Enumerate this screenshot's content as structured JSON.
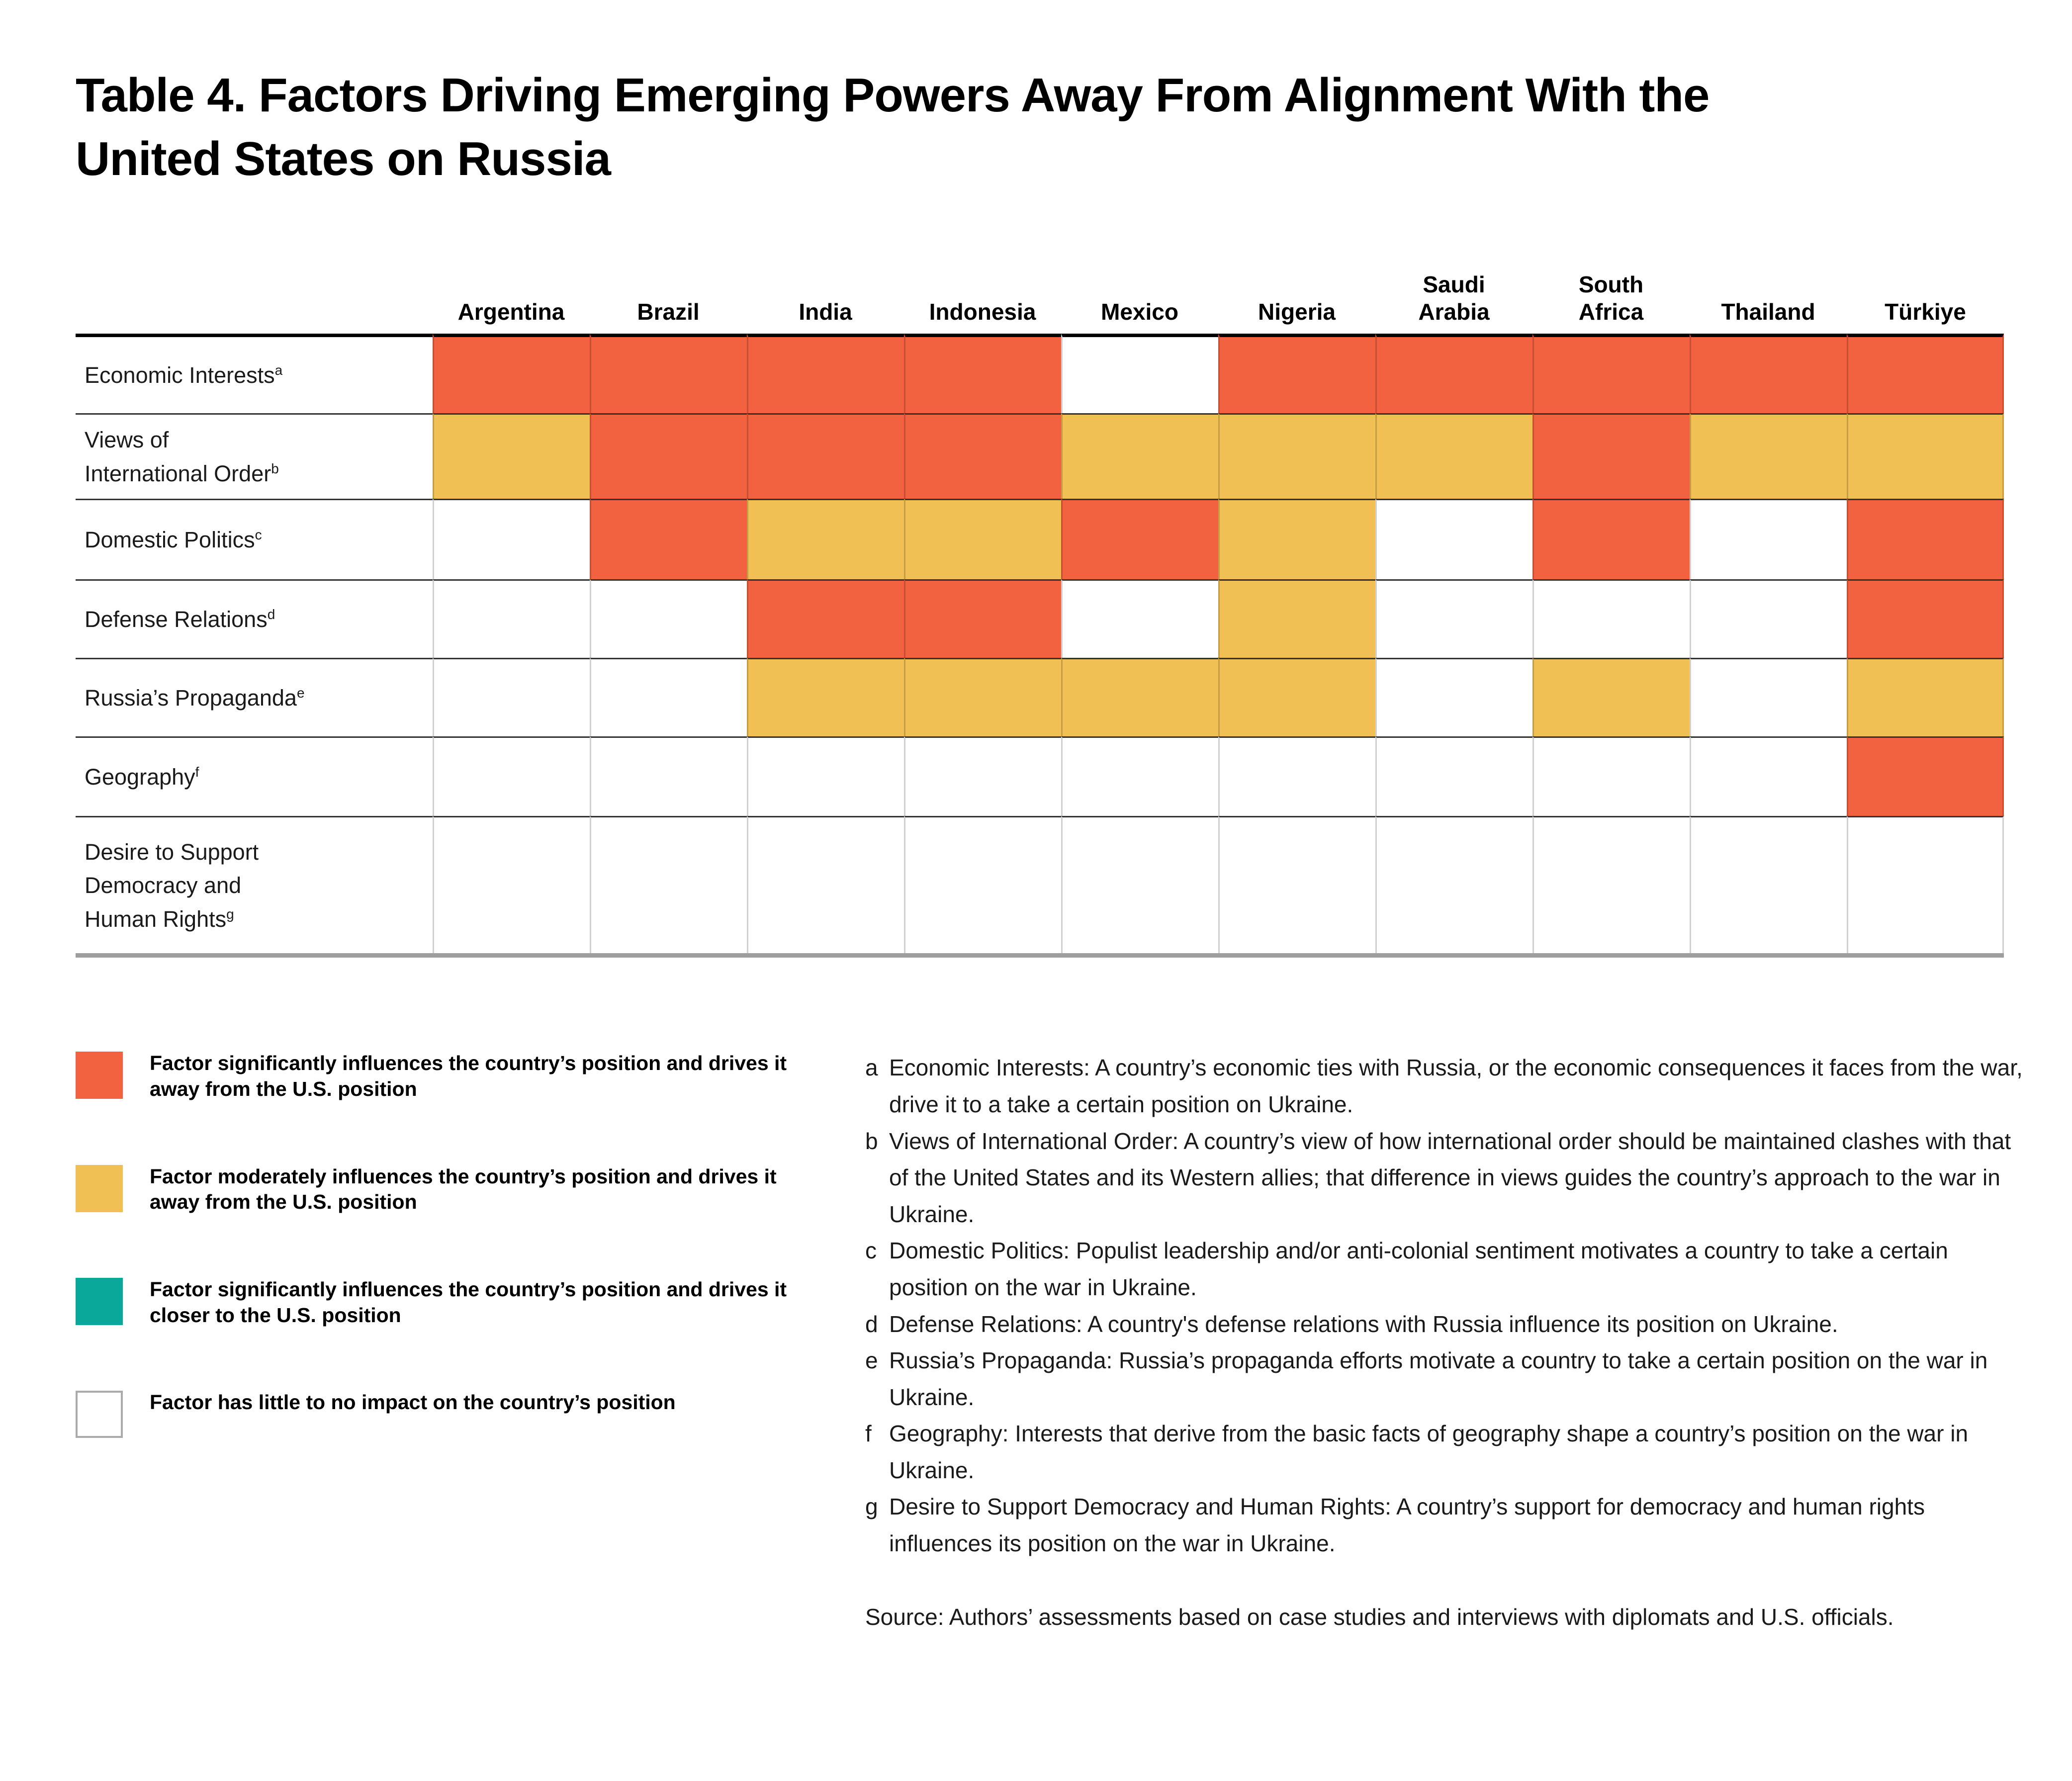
{
  "title": {
    "line1": "Table 4. Factors Driving Emerging Powers Away From Alignment With the",
    "line2": "United States on Russia"
  },
  "colors": {
    "significant": "#F26140",
    "moderate": "#F0C055",
    "closer": "#0AA79B",
    "none": "#FFFFFF",
    "header_rule": "#000000",
    "row_rule": "#333333",
    "bottom_rule": "#9E9E9E"
  },
  "chart_data": {
    "type": "heatmap",
    "title": "Table 4. Factors Driving Emerging Powers Away From Alignment With the United States on Russia",
    "value_scale": {
      "significant": "Factor significantly influences the country’s position and drives it away from the U.S. position",
      "moderate": "Factor moderately influences the country’s position and drives it away from the U.S. position",
      "closer": "Factor significantly influences the country’s position and drives it closer to the U.S. position",
      "none": "Factor has little to no impact on the country’s position"
    },
    "columns": [
      {
        "label": "Argentina"
      },
      {
        "label": "Brazil"
      },
      {
        "label": "India"
      },
      {
        "label": "Indonesia"
      },
      {
        "label": "Mexico"
      },
      {
        "label": "Nigeria"
      },
      {
        "label": "Saudi Arabia",
        "lines": [
          "Saudi",
          "Arabia"
        ]
      },
      {
        "label": "South Africa",
        "lines": [
          "South",
          "Africa"
        ]
      },
      {
        "label": "Thailand"
      },
      {
        "label": "Türkiye"
      }
    ],
    "rows": [
      {
        "factor": "Economic Interests",
        "sup": "a",
        "cells": [
          "significant",
          "significant",
          "significant",
          "significant",
          "none",
          "significant",
          "significant",
          "significant",
          "significant",
          "significant"
        ]
      },
      {
        "factor": "Views of International Order",
        "lines": [
          "Views of",
          "International Order"
        ],
        "sup": "b",
        "cells": [
          "moderate",
          "significant",
          "significant",
          "significant",
          "moderate",
          "moderate",
          "moderate",
          "significant",
          "moderate",
          "moderate"
        ]
      },
      {
        "factor": "Domestic Politics",
        "sup": "c",
        "cells": [
          "none",
          "significant",
          "moderate",
          "moderate",
          "significant",
          "moderate",
          "none",
          "significant",
          "none",
          "significant"
        ]
      },
      {
        "factor": "Defense Relations",
        "sup": "d",
        "cells": [
          "none",
          "none",
          "significant",
          "significant",
          "none",
          "moderate",
          "none",
          "none",
          "none",
          "significant"
        ]
      },
      {
        "factor": "Russia’s Propaganda",
        "sup": "e",
        "cells": [
          "none",
          "none",
          "moderate",
          "moderate",
          "moderate",
          "moderate",
          "none",
          "moderate",
          "none",
          "moderate"
        ]
      },
      {
        "factor": "Geography",
        "sup": "f",
        "cells": [
          "none",
          "none",
          "none",
          "none",
          "none",
          "none",
          "none",
          "none",
          "none",
          "significant"
        ]
      },
      {
        "factor": "Desire to Support Democracy and Human Rights",
        "lines": [
          "Desire to Support",
          "Democracy and",
          "Human Rights"
        ],
        "sup": "g",
        "cells": [
          "none",
          "none",
          "none",
          "none",
          "none",
          "none",
          "none",
          "none",
          "none",
          "none"
        ]
      }
    ]
  },
  "legend": {
    "items": [
      {
        "key": "significant",
        "label": "Factor significantly influences the country’s position and drives it away from the U.S. position"
      },
      {
        "key": "moderate",
        "label": "Factor moderately influences the country’s position and drives it away from the U.S. position"
      },
      {
        "key": "closer",
        "label": "Factor significantly influences the country’s position and drives it closer to the U.S. position"
      },
      {
        "key": "none",
        "label": "Factor has little to no impact on the country’s position"
      }
    ]
  },
  "footnotes": [
    {
      "letter": "a",
      "text": "Economic Interests: A country’s economic ties with Russia, or the economic consequences it faces from the war, drive it to a take a certain position on Ukraine."
    },
    {
      "letter": "b",
      "text": "Views of International Order: A country’s view of how international order should be maintained clashes with that of the United States and its Western allies; that difference in views guides the country’s approach to the war in Ukraine."
    },
    {
      "letter": "c",
      "text": "Domestic Politics: Populist leadership and/or anti-colonial sentiment motivates a country to take a certain position on the war in Ukraine."
    },
    {
      "letter": "d",
      "text": "Defense Relations: A country's defense relations with Russia influence its position on Ukraine."
    },
    {
      "letter": "e",
      "text": "Russia’s Propaganda: Russia’s propaganda efforts motivate a country to take a certain position on the war in Ukraine."
    },
    {
      "letter": "f",
      "text": "Geography: Interests that derive from the basic facts of geography shape a country’s position on the war in Ukraine."
    },
    {
      "letter": "g",
      "text": "Desire to Support Democracy and Human Rights: A country’s support for democracy and human rights influences its position on the war in Ukraine."
    }
  ],
  "source": "Source: Authors’ assessments based on case studies and interviews with diplomats and U.S. officials."
}
